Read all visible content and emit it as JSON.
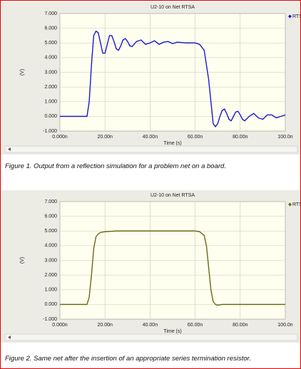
{
  "chart_data": [
    {
      "type": "line",
      "title": "U2-10 on Net RTSA",
      "xlabel": "Time (s)",
      "ylabel": "(V)",
      "caption": "Figure 1. Output from a reflection simulation for a problem net on a board.",
      "xlim": [
        0,
        100
      ],
      "ylim": [
        -1,
        7
      ],
      "xticks": [
        {
          "value": 0,
          "label": "0.000n"
        },
        {
          "value": 20,
          "label": "20.00n"
        },
        {
          "value": 40,
          "label": "40.00n"
        },
        {
          "value": 60,
          "label": "60.00n"
        },
        {
          "value": 80,
          "label": "80.00n"
        },
        {
          "value": 100,
          "label": "100.0n"
        }
      ],
      "yticks": [
        {
          "value": -1,
          "label": "-1.000"
        },
        {
          "value": 0,
          "label": "0.000"
        },
        {
          "value": 1,
          "label": "1.000"
        },
        {
          "value": 2,
          "label": "2.000"
        },
        {
          "value": 3,
          "label": "3.000"
        },
        {
          "value": 4,
          "label": "4.000"
        },
        {
          "value": 5,
          "label": "5.000"
        },
        {
          "value": 6,
          "label": "6.000"
        },
        {
          "value": 7,
          "label": "7.000"
        }
      ],
      "grid": true,
      "x": [
        0,
        12,
        13,
        14,
        15,
        16,
        17,
        18,
        19,
        20,
        21,
        22,
        23,
        24,
        25,
        26,
        27,
        28,
        29,
        30,
        31,
        32,
        34,
        36,
        38,
        40,
        42,
        44,
        46,
        48,
        50,
        52,
        56,
        60,
        62,
        64,
        66,
        67,
        68,
        69,
        70,
        71,
        72,
        73,
        74,
        75,
        76,
        77,
        78,
        79,
        80,
        81,
        82,
        84,
        86,
        88,
        90,
        92,
        94,
        96,
        98,
        100
      ],
      "series": [
        {
          "name": "RTSA",
          "color": "#1a1ad0",
          "values": [
            0,
            0,
            1,
            3.5,
            5.5,
            5.8,
            5.7,
            5,
            4.3,
            4.3,
            4.9,
            5.5,
            5.5,
            5.1,
            4.6,
            4.5,
            4.8,
            5.2,
            5.3,
            5.1,
            4.8,
            4.75,
            5.1,
            5.2,
            4.9,
            5,
            5.15,
            4.9,
            5.05,
            5.1,
            4.95,
            5.05,
            5,
            5,
            4.9,
            4.5,
            2.5,
            1,
            -0.5,
            -0.7,
            -0.5,
            0,
            0.4,
            0.5,
            0.2,
            -0.2,
            -0.3,
            0,
            0.3,
            0.35,
            0.1,
            -0.2,
            -0.3,
            0,
            0.2,
            -0.1,
            -0.2,
            0.1,
            0.1,
            -0.1,
            0,
            0.1
          ]
        }
      ]
    },
    {
      "type": "line",
      "title": "U2-10 on Net RTSA",
      "xlabel": "Time (s)",
      "ylabel": "(V)",
      "caption": "Figure 2. Same net after the insertion of an appropriate series termination resistor.",
      "xlim": [
        0,
        100
      ],
      "ylim": [
        -1,
        7
      ],
      "xticks": [
        {
          "value": 0,
          "label": "0.000n"
        },
        {
          "value": 20,
          "label": "20.00n"
        },
        {
          "value": 40,
          "label": "40.00n"
        },
        {
          "value": 60,
          "label": "60.00n"
        },
        {
          "value": 80,
          "label": "80.00n"
        },
        {
          "value": 100,
          "label": "100.0n"
        }
      ],
      "yticks": [
        {
          "value": -1,
          "label": "-1.000"
        },
        {
          "value": 0,
          "label": "0.000"
        },
        {
          "value": 1,
          "label": "1.000"
        },
        {
          "value": 2,
          "label": "2.000"
        },
        {
          "value": 3,
          "label": "3.000"
        },
        {
          "value": 4,
          "label": "4.000"
        },
        {
          "value": 5,
          "label": "5.000"
        },
        {
          "value": 6,
          "label": "6.000"
        },
        {
          "value": 7,
          "label": "7.000"
        }
      ],
      "grid": true,
      "x": [
        0,
        12,
        13,
        14,
        15,
        16,
        17,
        18,
        20,
        25,
        60,
        62,
        64,
        65,
        66,
        67,
        68,
        69,
        70,
        72,
        100
      ],
      "series": [
        {
          "name": "RTSA",
          "color": "#6b6b10",
          "values": [
            0,
            0,
            0.5,
            2,
            3.8,
            4.6,
            4.8,
            4.9,
            4.95,
            5,
            5,
            4.95,
            4.7,
            4,
            2.5,
            1,
            0.2,
            0,
            -0.05,
            0,
            0
          ]
        }
      ]
    }
  ]
}
